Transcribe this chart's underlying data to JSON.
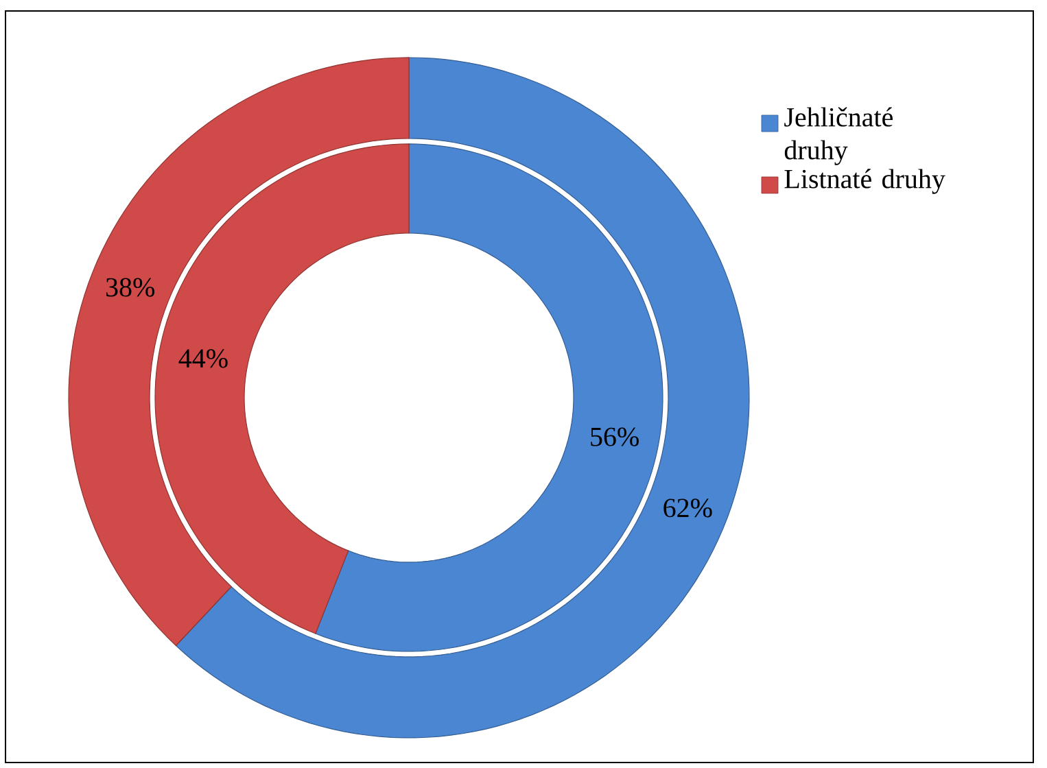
{
  "chart_data": {
    "type": "donut",
    "categories": [
      "Jehličnaté druhy",
      "Listnaté druhy"
    ],
    "series": [
      {
        "values": [
          62,
          38
        ],
        "value_labels": [
          "62%",
          "38%"
        ],
        "colors": [
          "#4a86d2",
          "#cf4a48"
        ]
      },
      {
        "values": [
          56,
          44
        ],
        "value_labels": [
          "56%",
          "44%"
        ],
        "colors": [
          "#4a86d2",
          "#cf4a48"
        ]
      }
    ],
    "legend": "top right"
  }
}
